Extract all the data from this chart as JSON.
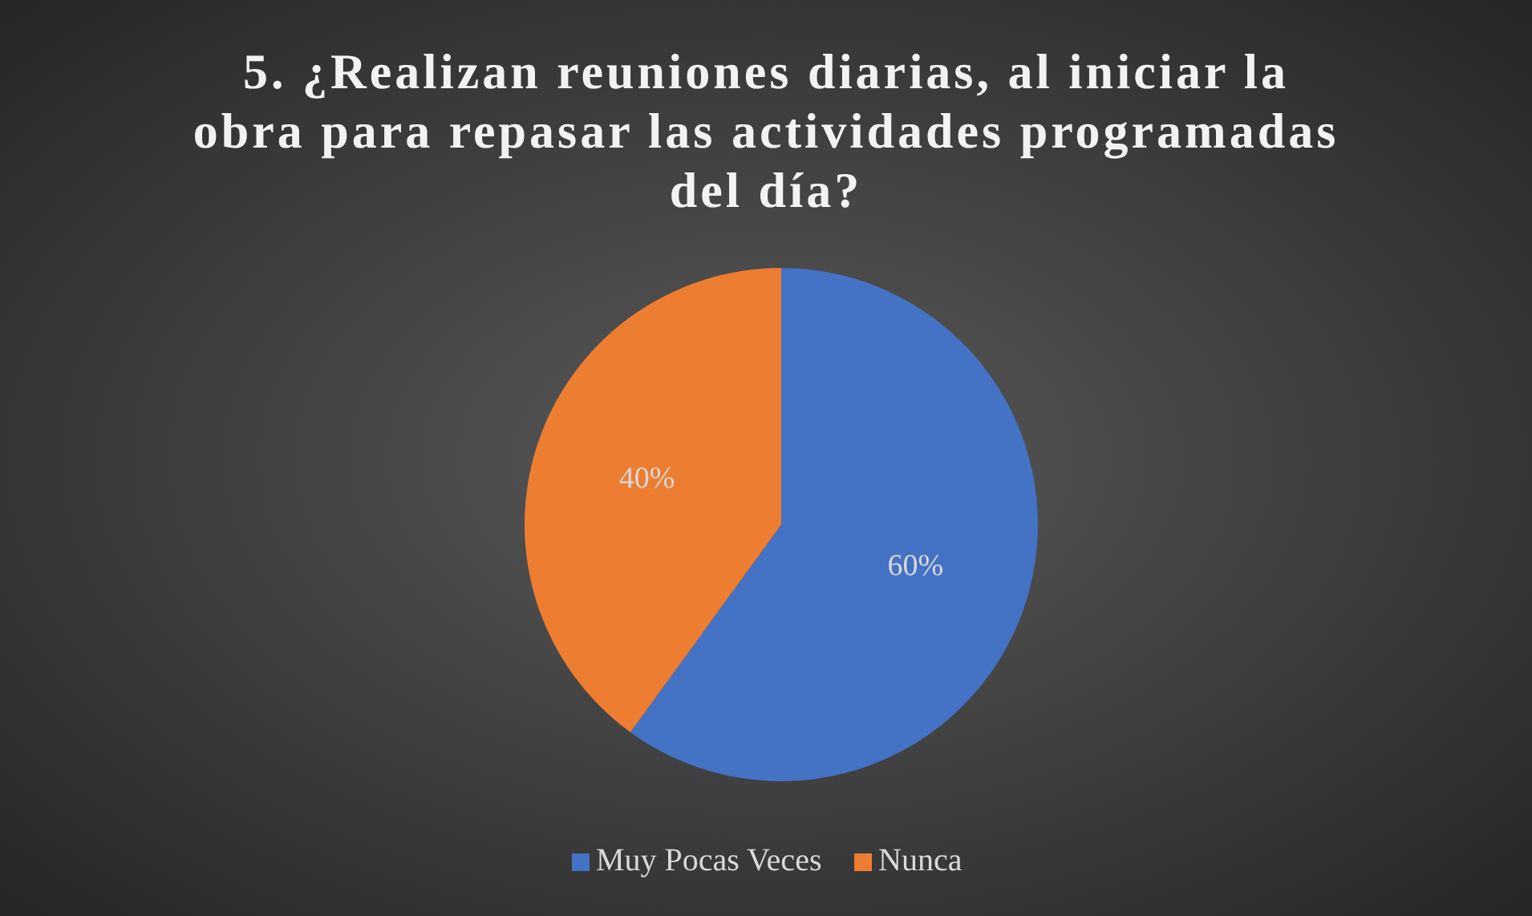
{
  "chart_data": {
    "type": "pie",
    "title": "5. ¿Realizan reuniones diarias, al iniciar la obra para repasar las actividades programadas del día?",
    "categories": [
      "Muy Pocas Veces",
      "Nunca"
    ],
    "values": [
      60,
      40
    ],
    "colors": [
      "#4472c4",
      "#ed7d31"
    ],
    "value_labels": [
      "60%",
      "40%"
    ],
    "legend": "bottom"
  }
}
